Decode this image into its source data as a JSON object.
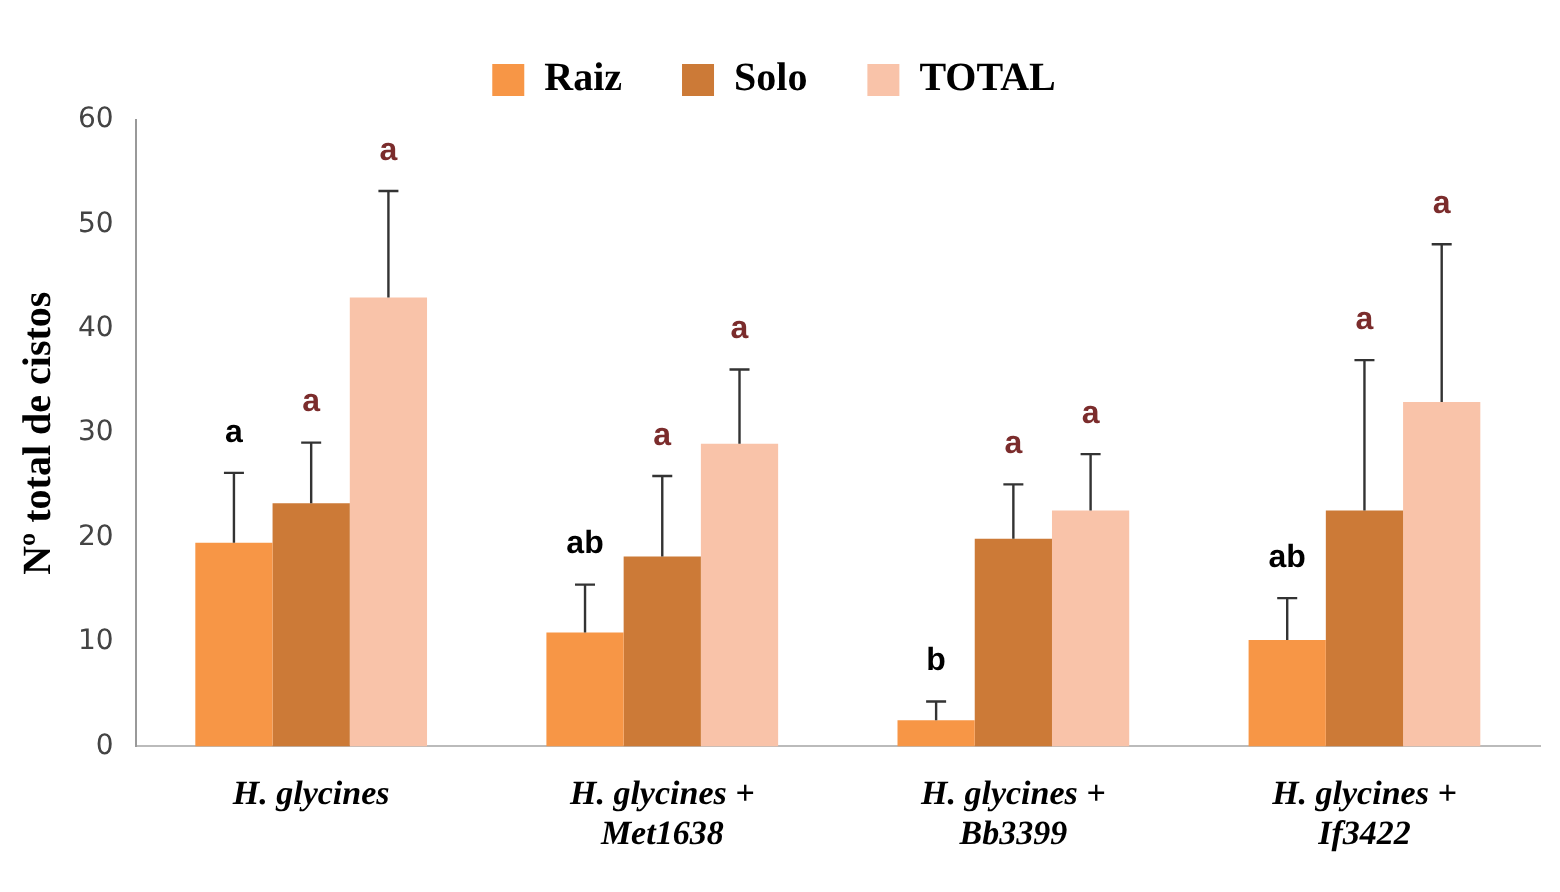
{
  "chart_data": {
    "type": "bar",
    "ylabel": "Nº total de cistos",
    "categories": [
      "H. glycines",
      "H. glycines + Met1638",
      "H. glycines + Bb3399",
      "H. glycines + If3422"
    ],
    "series": [
      {
        "name": "Raiz",
        "color": "#f79646",
        "values": [
          19.5,
          10.9,
          2.5,
          10.2
        ],
        "errors": [
          [
            19.5,
            26.2
          ],
          [
            10.9,
            15.5
          ],
          [
            2.5,
            4.3
          ],
          [
            10.2,
            14.2
          ]
        ]
      },
      {
        "name": "Solo",
        "color": "#cc7a37",
        "values": [
          23.3,
          18.2,
          19.9,
          22.6
        ],
        "errors": [
          [
            23.3,
            29.1
          ],
          [
            18.2,
            25.9
          ],
          [
            19.9,
            25.1
          ],
          [
            22.6,
            37.0
          ]
        ]
      },
      {
        "name": "TOTAL",
        "color": "#f9c3a9",
        "values": [
          43.0,
          29.0,
          22.6,
          33.0
        ],
        "errors": [
          [
            43.0,
            53.2
          ],
          [
            29.0,
            36.1
          ],
          [
            22.6,
            28.0
          ],
          [
            33.0,
            48.1
          ]
        ]
      }
    ],
    "annotations": [
      "a",
      "a",
      "a",
      "ab",
      "a",
      "a",
      "b",
      "a",
      "a",
      "ab",
      "a",
      "a"
    ],
    "ylim": [
      0,
      60
    ],
    "yticks": [
      0,
      10,
      20,
      30,
      40,
      50,
      60
    ],
    "grid": false,
    "legend": "top"
  }
}
